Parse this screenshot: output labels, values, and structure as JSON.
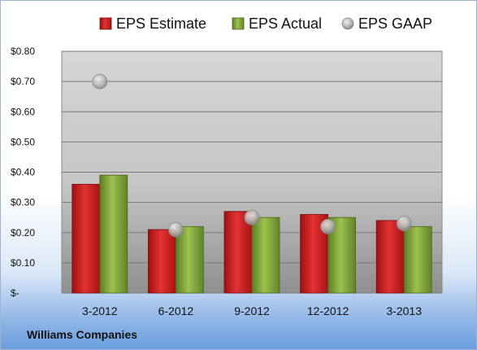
{
  "chart_data": {
    "type": "bar",
    "title": "",
    "categories": [
      "3-2012",
      "6-2012",
      "9-2012",
      "12-2012",
      "3-2013"
    ],
    "series": [
      {
        "name": "EPS Estimate",
        "kind": "bar",
        "color": "#cc1f1f",
        "values": [
          0.36,
          0.21,
          0.27,
          0.26,
          0.24
        ]
      },
      {
        "name": "EPS Actual",
        "kind": "bar",
        "color": "#7fa23a",
        "values": [
          0.39,
          0.22,
          0.25,
          0.25,
          0.22
        ]
      },
      {
        "name": "EPS GAAP",
        "kind": "scatter",
        "color": "#a9a9a9",
        "values": [
          0.7,
          0.21,
          0.25,
          0.22,
          0.23
        ]
      }
    ],
    "ylim": [
      0,
      0.8
    ],
    "y_ticks": [
      0,
      0.1,
      0.2,
      0.3,
      0.4,
      0.5,
      0.6,
      0.7,
      0.8
    ],
    "y_tick_labels": [
      "$-",
      "$0.10",
      "$0.20",
      "$0.30",
      "$0.40",
      "$0.50",
      "$0.60",
      "$0.70",
      "$0.80"
    ],
    "grid": true,
    "legend_position": "top"
  },
  "footer": {
    "company": "Williams Companies"
  }
}
